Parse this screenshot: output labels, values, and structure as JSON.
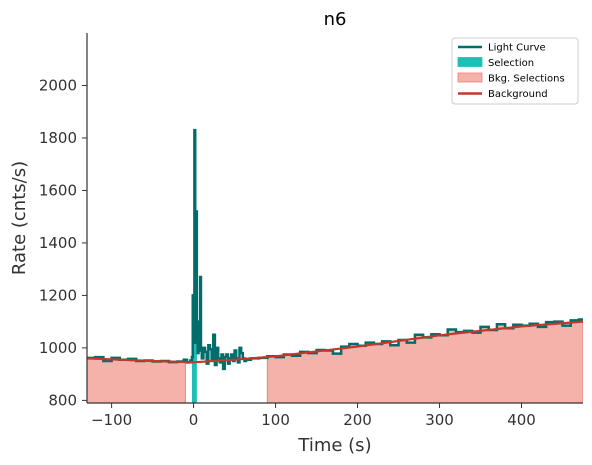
{
  "chart_data": {
    "type": "line",
    "title": "n6",
    "xlabel": "Time (s)",
    "ylabel": "Rate (cnts/s)",
    "xlim": [
      -130,
      475
    ],
    "ylim": [
      790,
      2200
    ],
    "xticks": [
      -100,
      0,
      100,
      200,
      300,
      400
    ],
    "yticks": [
      800,
      1000,
      1200,
      1400,
      1600,
      1800,
      2000
    ],
    "grid": false,
    "legend_position": "top-right",
    "legend": [
      {
        "name": "Light Curve",
        "kind": "line",
        "color": "#006d6a"
      },
      {
        "name": "Selection",
        "kind": "patch",
        "color": "#1fbfb8"
      },
      {
        "name": "Bkg. Selections",
        "kind": "patch",
        "color": "#f4b2aa"
      },
      {
        "name": "Background",
        "kind": "line",
        "color": "#c0392b"
      }
    ],
    "colors": {
      "light_curve": "#006d6a",
      "selection": "#1fbfb8",
      "bkg_fill": "#f4b2aa",
      "bkg_edge": "#e8837a",
      "background": "#c0392b"
    },
    "bkg_selections": [
      [
        -130,
        -10
      ],
      [
        90,
        475
      ]
    ],
    "selection": [
      [
        -2,
        4
      ]
    ],
    "background_model": {
      "x": [
        -130,
        -50,
        0,
        50,
        100,
        200,
        300,
        400,
        475
      ],
      "y": [
        960,
        950,
        945,
        955,
        968,
        1005,
        1048,
        1082,
        1100
      ]
    },
    "light_curve": {
      "x": [
        -130,
        -120,
        -110,
        -100,
        -90,
        -80,
        -70,
        -60,
        -50,
        -40,
        -30,
        -20,
        -12,
        -8,
        -4,
        -2,
        -1,
        0,
        1,
        2,
        3,
        4,
        5,
        6,
        7,
        8,
        9,
        10,
        12,
        14,
        16,
        18,
        20,
        22,
        24,
        26,
        28,
        30,
        32,
        34,
        36,
        38,
        40,
        42,
        44,
        46,
        48,
        50,
        52,
        54,
        56,
        58,
        60,
        62,
        64,
        70,
        80,
        90,
        100,
        110,
        120,
        130,
        140,
        150,
        160,
        170,
        180,
        190,
        200,
        210,
        220,
        230,
        240,
        250,
        260,
        270,
        280,
        290,
        300,
        310,
        320,
        330,
        340,
        350,
        360,
        370,
        380,
        390,
        400,
        410,
        420,
        430,
        440,
        450,
        460,
        470,
        475
      ],
      "y": [
        962,
        965,
        950,
        962,
        955,
        958,
        950,
        952,
        948,
        950,
        946,
        948,
        955,
        945,
        952,
        965,
        1200,
        1150,
        1830,
        1020,
        1520,
        1100,
        980,
        1050,
        1040,
        1270,
        990,
        960,
        1000,
        985,
        940,
        1010,
        995,
        955,
        1050,
        935,
        1000,
        960,
        945,
        975,
        920,
        965,
        975,
        940,
        960,
        975,
        950,
        990,
        960,
        945,
        1000,
        980,
        960,
        950,
        955,
        960,
        962,
        968,
        965,
        975,
        970,
        985,
        980,
        992,
        990,
        978,
        1005,
        1015,
        1008,
        1020,
        1015,
        1025,
        1010,
        1030,
        1020,
        1050,
        1040,
        1052,
        1048,
        1070,
        1060,
        1065,
        1058,
        1080,
        1068,
        1090,
        1075,
        1088,
        1085,
        1092,
        1080,
        1098,
        1100,
        1085,
        1105,
        1108,
        1108
      ]
    }
  }
}
